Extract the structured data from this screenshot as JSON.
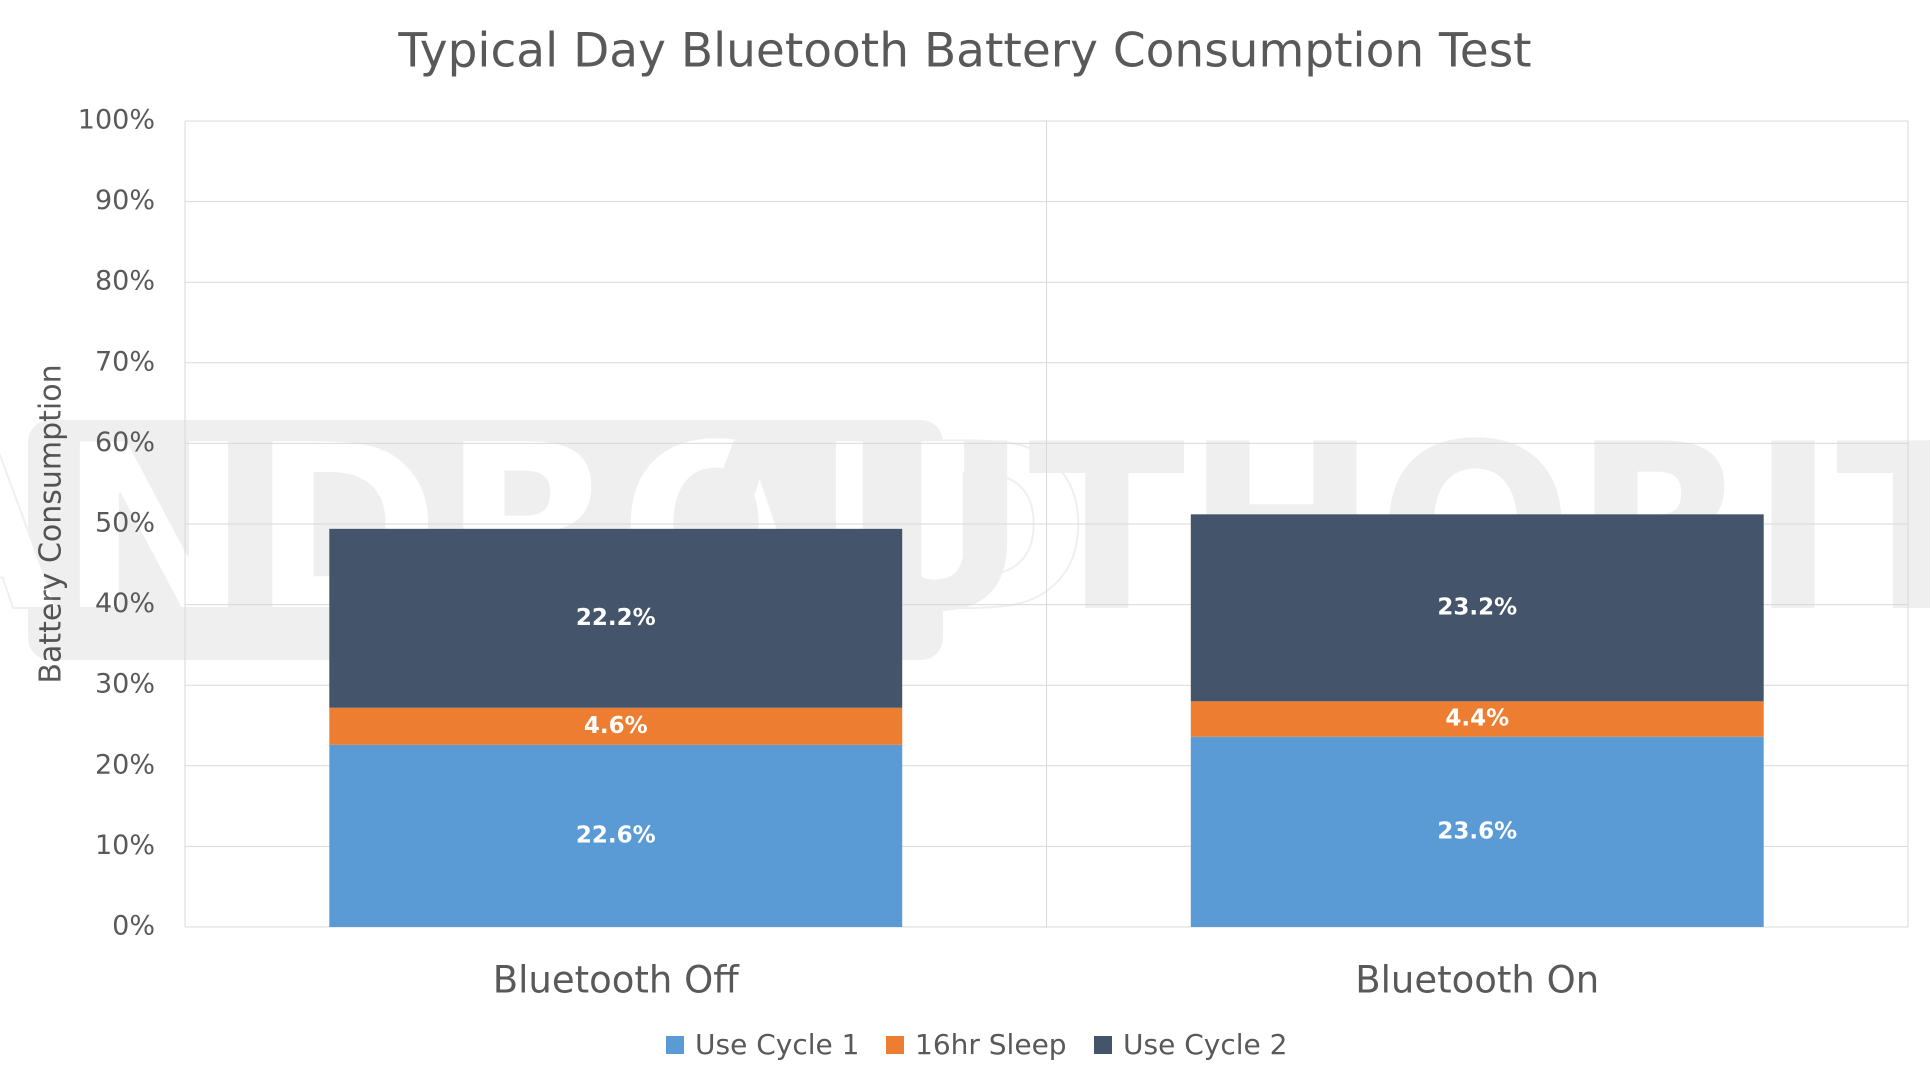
{
  "chart_data": {
    "type": "stacked_bar",
    "title": "Typical Day Bluetooth Battery Consumption Test",
    "y_label": "Battery Consumption",
    "categories": [
      "Bluetooth Off",
      "Bluetooth On"
    ],
    "series": [
      {
        "name": "Use Cycle 1",
        "color": "#5b9bd5",
        "values": [
          22.6,
          23.6
        ],
        "value_labels": [
          "22.6%",
          "23.6%"
        ]
      },
      {
        "name": "16hr Sleep",
        "color": "#ed7d31",
        "values": [
          4.6,
          4.4
        ],
        "value_labels": [
          "4.6%",
          "4.4%"
        ]
      },
      {
        "name": "Use Cycle 2",
        "color": "#44546a",
        "values": [
          22.2,
          23.2
        ],
        "value_labels": [
          "22.2%",
          "23.2%"
        ]
      }
    ],
    "ylim": [
      0,
      100
    ],
    "yticks": [
      {
        "value": 0,
        "label": "0%"
      },
      {
        "value": 10,
        "label": "10%"
      },
      {
        "value": 20,
        "label": "20%"
      },
      {
        "value": 30,
        "label": "30%"
      },
      {
        "value": 40,
        "label": "40%"
      },
      {
        "value": 50,
        "label": "50%"
      },
      {
        "value": 60,
        "label": "60%"
      },
      {
        "value": 70,
        "label": "70%"
      },
      {
        "value": 80,
        "label": "80%"
      },
      {
        "value": 90,
        "label": "90%"
      },
      {
        "value": 100,
        "label": "100%"
      }
    ],
    "grid": true,
    "legend": "bottom",
    "watermark": [
      "ANDROID",
      "AUTHORITY"
    ]
  }
}
